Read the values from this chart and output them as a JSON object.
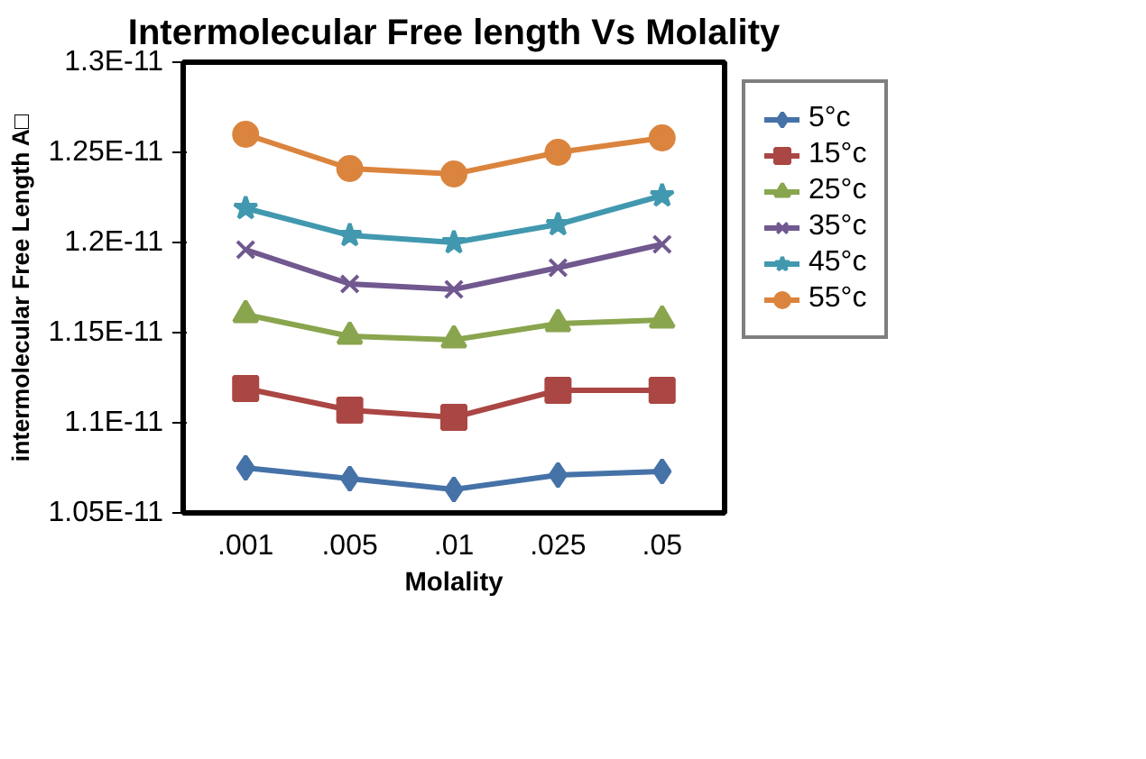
{
  "chart_data": {
    "type": "line",
    "title": "Intermolecular Free length Vs Molality",
    "xlabel": "Molality",
    "ylabel": "intermolecular Free Length A□",
    "categories": [
      ".001",
      ".005",
      ".01",
      ".025",
      ".05"
    ],
    "ylim": [
      1.05e-11,
      1.3e-11
    ],
    "yticks": [
      {
        "value": 1.05e-11,
        "label": "1.05E-11"
      },
      {
        "value": 1.1e-11,
        "label": "1.1E-11"
      },
      {
        "value": 1.15e-11,
        "label": "1.15E-11"
      },
      {
        "value": 1.2e-11,
        "label": "1.2E-11"
      },
      {
        "value": 1.25e-11,
        "label": "1.25E-11"
      },
      {
        "value": 1.3e-11,
        "label": "1.3E-11"
      }
    ],
    "grid": false,
    "legend": "right",
    "line_style": "solid",
    "series": [
      {
        "name": "5°c",
        "color": "#4572a7",
        "marker": "diamond",
        "values": [
          1.075e-11,
          1.069e-11,
          1.063e-11,
          1.071e-11,
          1.073e-11
        ]
      },
      {
        "name": "15°c",
        "color": "#aa4643",
        "marker": "square",
        "values": [
          1.119e-11,
          1.107e-11,
          1.103e-11,
          1.118e-11,
          1.118e-11
        ]
      },
      {
        "name": "25°c",
        "color": "#89a54e",
        "marker": "triangle",
        "values": [
          1.16e-11,
          1.148e-11,
          1.146e-11,
          1.155e-11,
          1.157e-11
        ]
      },
      {
        "name": "35°c",
        "color": "#71588f",
        "marker": "cross",
        "values": [
          1.196e-11,
          1.177e-11,
          1.174e-11,
          1.186e-11,
          1.199e-11
        ]
      },
      {
        "name": "45°c",
        "color": "#4198af",
        "marker": "star",
        "values": [
          1.219e-11,
          1.204e-11,
          1.2e-11,
          1.21e-11,
          1.226e-11
        ]
      },
      {
        "name": "55°c",
        "color": "#db843d",
        "marker": "circle",
        "values": [
          1.26e-11,
          1.241e-11,
          1.238e-11,
          1.25e-11,
          1.258e-11
        ]
      }
    ]
  }
}
